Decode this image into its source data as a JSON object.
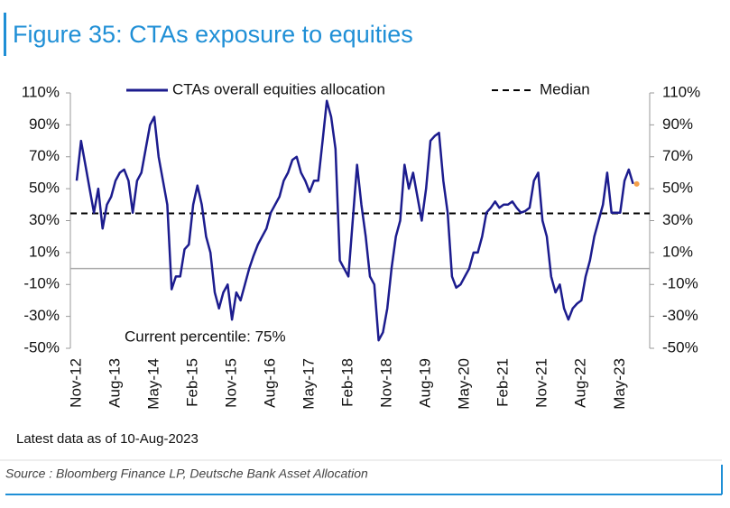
{
  "chart_data": {
    "type": "line",
    "title": "Figure 35: CTAs exposure to equities",
    "annotation": "Current percentile: 75%",
    "note": "Latest data as of 10-Aug-2023",
    "source": "Source : Bloomberg Finance LP, Deutsche Bank Asset Allocation",
    "categories": [
      "Nov-12",
      null,
      null,
      null,
      null,
      null,
      null,
      null,
      null,
      "Aug-13",
      null,
      null,
      null,
      null,
      null,
      null,
      null,
      null,
      "May-14",
      null,
      null,
      null,
      null,
      null,
      null,
      null,
      null,
      "Feb-15",
      null,
      null,
      null,
      null,
      null,
      null,
      null,
      null,
      "Nov-15",
      null,
      null,
      null,
      null,
      null,
      null,
      null,
      null,
      "Aug-16",
      null,
      null,
      null,
      null,
      null,
      null,
      null,
      null,
      "May-17",
      null,
      null,
      null,
      null,
      null,
      null,
      null,
      null,
      "Feb-18",
      null,
      null,
      null,
      null,
      null,
      null,
      null,
      null,
      "Nov-18",
      null,
      null,
      null,
      null,
      null,
      null,
      null,
      null,
      "Aug-19",
      null,
      null,
      null,
      null,
      null,
      null,
      null,
      null,
      "May-20",
      null,
      null,
      null,
      null,
      null,
      null,
      null,
      null,
      "Feb-21",
      null,
      null,
      null,
      null,
      null,
      null,
      null,
      null,
      "Nov-21",
      null,
      null,
      null,
      null,
      null,
      null,
      null,
      null,
      "Aug-22",
      null,
      null,
      null,
      null,
      null,
      null,
      null,
      null,
      "May-23",
      null,
      null,
      null
    ],
    "series": [
      {
        "name": "CTAs overall equities allocation",
        "color": "#1c1c8e",
        "values": [
          55,
          80,
          65,
          50,
          35,
          50,
          25,
          40,
          45,
          55,
          60,
          62,
          55,
          35,
          55,
          60,
          75,
          90,
          95,
          70,
          55,
          40,
          -13,
          -5,
          -5,
          12,
          15,
          40,
          52,
          40,
          20,
          10,
          -15,
          -25,
          -15,
          -10,
          -32,
          -15,
          -20,
          -10,
          0,
          8,
          15,
          20,
          25,
          35,
          40,
          45,
          55,
          60,
          68,
          70,
          60,
          55,
          48,
          55,
          55,
          80,
          105,
          95,
          75,
          5,
          0,
          -5,
          30,
          65,
          40,
          20,
          -5,
          -10,
          -45,
          -40,
          -25,
          0,
          20,
          30,
          65,
          50,
          60,
          45,
          30,
          50,
          80,
          83,
          85,
          55,
          35,
          -5,
          -12,
          -10,
          -5,
          0,
          10,
          10,
          20,
          35,
          38,
          42,
          38,
          40,
          40,
          42,
          38,
          35,
          36,
          38,
          55,
          60,
          30,
          20,
          -5,
          -15,
          -10,
          -25,
          -32,
          -25,
          -22,
          -20,
          -5,
          5,
          20,
          30,
          40,
          60,
          35,
          35,
          35,
          55,
          62,
          53
        ]
      }
    ],
    "last_point_color": "#f5a04a",
    "reference_line": {
      "name": "Median",
      "value": 34.5,
      "color": "#000000",
      "style": "dashed"
    },
    "ylim": [
      -50,
      110
    ],
    "yticks": [
      {
        "value": -50,
        "label": "-50%"
      },
      {
        "value": -30,
        "label": "-30%"
      },
      {
        "value": -10,
        "label": "-10%"
      },
      {
        "value": 10,
        "label": "10%"
      },
      {
        "value": 30,
        "label": "30%"
      },
      {
        "value": 50,
        "label": "50%"
      },
      {
        "value": 70,
        "label": "70%"
      },
      {
        "value": 90,
        "label": "90%"
      },
      {
        "value": 110,
        "label": "110%"
      }
    ],
    "y2lim": [
      -50,
      110
    ],
    "y2ticks": [
      {
        "value": -50,
        "label": "-50%"
      },
      {
        "value": -30,
        "label": "-30%"
      },
      {
        "value": -10,
        "label": "-10%"
      },
      {
        "value": 10,
        "label": "10%"
      },
      {
        "value": 30,
        "label": "30%"
      },
      {
        "value": 50,
        "label": "50%"
      },
      {
        "value": 70,
        "label": "70%"
      },
      {
        "value": 90,
        "label": "90%"
      },
      {
        "value": 110,
        "label": "110%"
      }
    ],
    "grid": false
  }
}
